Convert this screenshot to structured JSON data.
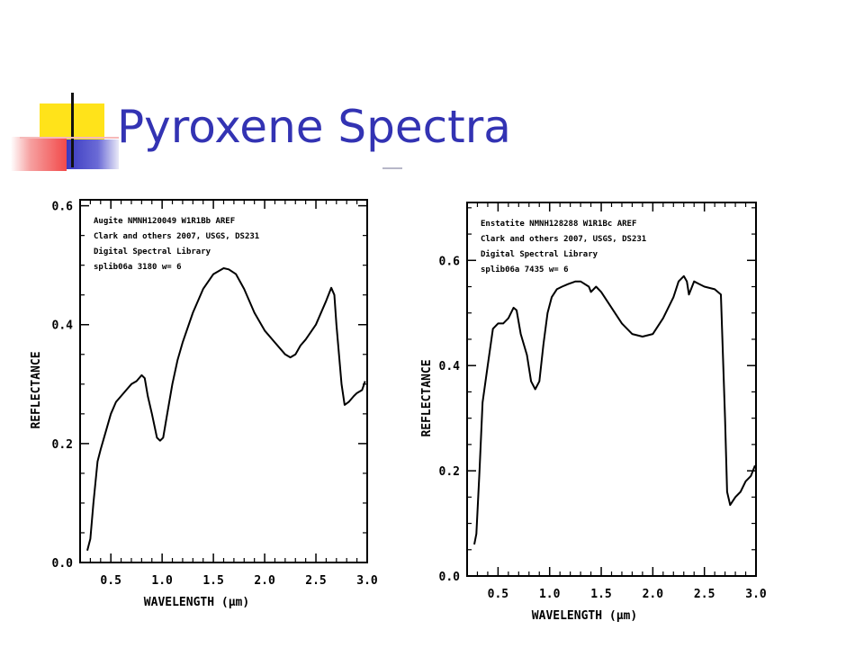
{
  "slide": {
    "title": "Pyroxene Spectra",
    "title_color": "#3333b3",
    "accent_yellow": "#ffe31a",
    "accent_blue": "#3a3ac0",
    "accent_red": "#f24a4a"
  },
  "chart_data": [
    {
      "type": "line",
      "header": [
        "Augite NMNH120049         W1R1Bb AREF",
        "Clark and others 2007, USGS, DS231",
        "Digital Spectral Library",
        "splib06a 3180 w= 6"
      ],
      "xlabel": "WAVELENGTH (μm)",
      "ylabel": "REFLECTANCE",
      "xlim": [
        0.2,
        3.0
      ],
      "ylim": [
        0.0,
        0.61
      ],
      "xticks": [
        "0.5",
        "1.0",
        "1.5",
        "2.0",
        "2.5",
        "3.0"
      ],
      "yticks": [
        "0.0",
        "0.2",
        "0.4",
        "0.6"
      ],
      "series": [
        {
          "x": [
            0.27,
            0.3,
            0.33,
            0.37,
            0.4,
            0.45,
            0.5,
            0.55,
            0.6,
            0.65,
            0.7,
            0.75,
            0.8,
            0.83,
            0.86,
            0.9,
            0.95,
            0.98,
            1.01,
            1.05,
            1.1,
            1.15,
            1.2,
            1.3,
            1.4,
            1.5,
            1.6,
            1.65,
            1.72,
            1.8,
            1.9,
            2.0,
            2.1,
            2.2,
            2.25,
            2.3,
            2.35,
            2.4,
            2.5,
            2.6,
            2.65,
            2.68,
            2.7,
            2.75,
            2.78,
            2.82,
            2.87,
            2.9,
            2.95,
            2.98
          ],
          "y": [
            0.02,
            0.04,
            0.1,
            0.17,
            0.19,
            0.22,
            0.25,
            0.27,
            0.28,
            0.29,
            0.3,
            0.305,
            0.315,
            0.31,
            0.28,
            0.25,
            0.21,
            0.205,
            0.21,
            0.25,
            0.3,
            0.34,
            0.37,
            0.42,
            0.46,
            0.485,
            0.495,
            0.493,
            0.485,
            0.46,
            0.42,
            0.39,
            0.37,
            0.35,
            0.345,
            0.35,
            0.365,
            0.375,
            0.4,
            0.44,
            0.462,
            0.45,
            0.4,
            0.3,
            0.265,
            0.27,
            0.28,
            0.285,
            0.29,
            0.305
          ]
        }
      ]
    },
    {
      "type": "line",
      "header": [
        "Enstatite NMNH128288      W1R1Bc AREF",
        "Clark and others 2007, USGS, DS231",
        "Digital Spectral Library",
        "splib06a 7435 w= 6"
      ],
      "xlabel": "WAVELENGTH (μm)",
      "ylabel": "REFLECTANCE",
      "xlim": [
        0.2,
        3.0
      ],
      "ylim": [
        0.0,
        0.71
      ],
      "xticks": [
        "0.5",
        "1.0",
        "1.5",
        "2.0",
        "2.5",
        "3.0"
      ],
      "yticks": [
        "0.0",
        "0.2",
        "0.4",
        "0.6"
      ],
      "series": [
        {
          "x": [
            0.27,
            0.29,
            0.32,
            0.35,
            0.4,
            0.45,
            0.5,
            0.55,
            0.6,
            0.65,
            0.68,
            0.72,
            0.78,
            0.82,
            0.86,
            0.9,
            0.94,
            0.98,
            1.02,
            1.07,
            1.12,
            1.18,
            1.25,
            1.3,
            1.38,
            1.4,
            1.45,
            1.5,
            1.6,
            1.7,
            1.8,
            1.9,
            2.0,
            2.1,
            2.2,
            2.25,
            2.3,
            2.33,
            2.35,
            2.4,
            2.45,
            2.5,
            2.6,
            2.66,
            2.7,
            2.72,
            2.75,
            2.8,
            2.85,
            2.9,
            2.95,
            2.99
          ],
          "y": [
            0.06,
            0.08,
            0.2,
            0.33,
            0.4,
            0.47,
            0.48,
            0.48,
            0.49,
            0.51,
            0.505,
            0.46,
            0.42,
            0.37,
            0.355,
            0.37,
            0.44,
            0.5,
            0.53,
            0.545,
            0.55,
            0.555,
            0.56,
            0.56,
            0.55,
            0.54,
            0.55,
            0.54,
            0.51,
            0.48,
            0.46,
            0.455,
            0.46,
            0.49,
            0.53,
            0.56,
            0.57,
            0.56,
            0.535,
            0.56,
            0.555,
            0.55,
            0.545,
            0.535,
            0.3,
            0.16,
            0.135,
            0.15,
            0.16,
            0.18,
            0.19,
            0.21
          ]
        }
      ]
    }
  ]
}
